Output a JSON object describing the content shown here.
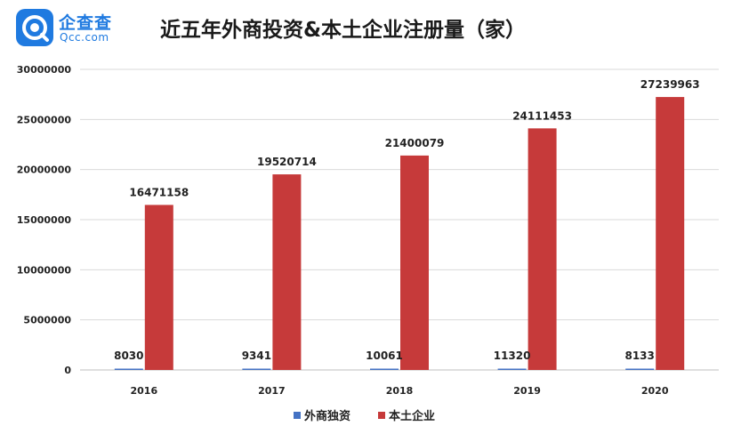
{
  "logo": {
    "name": "企查查",
    "domain": "Qcc.com"
  },
  "colors": {
    "brand": "#1f7ae0",
    "foreign": "#4472c4",
    "domestic": "#c63a3a"
  },
  "chart_data": {
    "type": "bar",
    "title": "近五年外商投资&本土企业注册量（家）",
    "categories": [
      "2016",
      "2017",
      "2018",
      "2019",
      "2020"
    ],
    "series": [
      {
        "name": "外商独资",
        "color": "#4472c4",
        "values": [
          8030,
          9341,
          10061,
          11320,
          8133
        ]
      },
      {
        "name": "本土企业",
        "color": "#c63a3a",
        "values": [
          16471158,
          19520714,
          21400079,
          24111453,
          27239963
        ]
      }
    ],
    "yticks": [
      "0",
      "5000000",
      "10000000",
      "15000000",
      "20000000",
      "25000000",
      "30000000"
    ],
    "ylim": [
      0,
      30000000
    ],
    "grid": true,
    "legend": "bottom"
  }
}
